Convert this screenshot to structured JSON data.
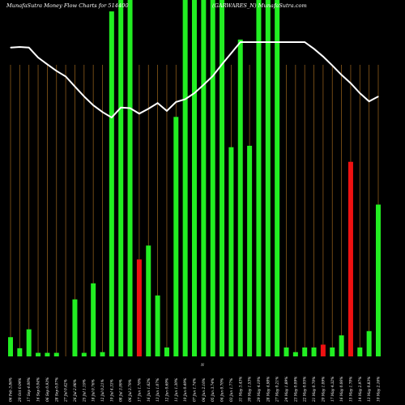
{
  "chart_data": {
    "type": "bar",
    "title_left": "MunafaSutra  Money Flow  Charts for 514400",
    "title_right": "(GARWARES_N)  MunafaSutra.com",
    "center_label": "N",
    "ylim": [
      0,
      100
    ],
    "line_ylim": [
      0,
      100
    ],
    "colors": {
      "background": "#000000",
      "up_bar": "#22ee22",
      "down_bar": "#ee1111",
      "line": "#ffffff",
      "gridline": "#8b5a1a",
      "text": "#ffffff"
    },
    "categories": [
      "06 Feb 3.86%",
      "20 Oct 0.04%",
      "17 Sep 4.00%",
      "16 Sep 0.04%",
      "06 Sep 0.93%",
      "28 Sep 0.07%",
      "27 Jul 0.42%",
      "26 Jul 2.98%",
      "25 Jul 1.19%",
      "18 Jul 0.76%",
      "12 Jul 0.21%",
      "10 Jul 4.33%",
      "08 Jul 3.99%",
      "06 Jul 3.79%",
      "17 Jun 1.76%",
      "16 Jun 1.62%",
      "13 Jun 1.07%",
      "12 Jun 0.69%",
      "11 Jun 1.30%",
      "10 Jun 0.49%",
      "07 Jun 1.74%",
      "06 Jun 2.16%",
      "05 Jun 3.74%",
      "04 Jun 0.70%",
      "03 Jun 1.77%",
      "31 May 3.43%",
      "30 May 1.53%",
      "29 May 4.10%",
      "28 May 4.98%",
      "27 May 0.21%",
      "24 May 1.89%",
      "23 May 0.09%",
      "22 May 0.05%",
      "21 May 0.70%",
      "20 May 1.09%",
      "17 May 4.32%",
      "16 May 0.06%",
      "15 May 1.70%",
      "14 May 2.97%",
      "13 May 0.83%",
      "10 May 2.16%"
    ],
    "values": [
      5.4,
      2.3,
      7.6,
      1.0,
      1.0,
      1.0,
      0,
      16.0,
      1.0,
      20.5,
      1.2,
      96.8,
      100,
      100,
      27.2,
      31.1,
      17.1,
      2.5,
      67.2,
      100,
      100,
      100,
      100,
      100,
      58.7,
      88.9,
      59.1,
      100,
      100,
      100,
      2.5,
      1.2,
      2.5,
      2.5,
      3.3,
      2.5,
      5.9,
      54.6,
      2.5,
      7.1,
      42.6
    ],
    "bar_colors": [
      "green",
      "green",
      "green",
      "green",
      "green",
      "green",
      "green",
      "green",
      "green",
      "green",
      "green",
      "green",
      "green",
      "green",
      "red",
      "green",
      "green",
      "green",
      "green",
      "green",
      "green",
      "green",
      "green",
      "green",
      "green",
      "green",
      "green",
      "green",
      "green",
      "green",
      "green",
      "green",
      "green",
      "green",
      "red",
      "green",
      "green",
      "red",
      "green",
      "green",
      "green"
    ],
    "line": [
      96.2,
      96.6,
      96.2,
      89.3,
      84.6,
      80.0,
      76.2,
      69.2,
      62.3,
      56.2,
      51.5,
      47.7,
      54.6,
      54.2,
      50.4,
      53.8,
      57.7,
      52.3,
      58.5,
      60.4,
      64.6,
      70.4,
      76.5,
      84.6,
      92.3,
      100,
      100,
      100,
      100,
      100,
      100,
      100,
      100,
      95.4,
      90.0,
      83.8,
      77.3,
      71.5,
      64.6,
      58.9,
      62.3
    ]
  }
}
